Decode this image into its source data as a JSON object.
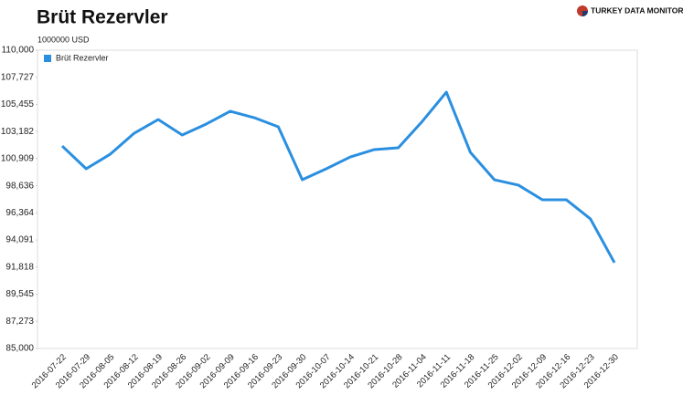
{
  "chart_data": {
    "type": "line",
    "title": "Brüt Rezervler",
    "subtitle": "1000000 USD",
    "brand": "TURKEY DATA MONITOR",
    "x": [
      "2016-07-22",
      "2016-07-29",
      "2016-08-05",
      "2016-08-12",
      "2016-08-19",
      "2016-08-26",
      "2016-09-02",
      "2016-09-09",
      "2016-09-16",
      "2016-09-23",
      "2016-09-30",
      "2016-10-07",
      "2016-10-14",
      "2016-10-21",
      "2016-10-28",
      "2016-11-04",
      "2016-11-11",
      "2016-11-18",
      "2016-11-25",
      "2016-12-02",
      "2016-12-09",
      "2016-12-16",
      "2016-12-23",
      "2016-12-30"
    ],
    "series": [
      {
        "name": "Brüt Rezervler",
        "color": "#2b8fe0",
        "values": [
          101970,
          100060,
          101280,
          103040,
          104190,
          102890,
          103810,
          104880,
          104340,
          103580,
          99140,
          100060,
          101050,
          101670,
          101820,
          104040,
          106480,
          101440,
          99140,
          98690,
          97460,
          97460,
          95860,
          92190
        ]
      }
    ],
    "ylim": [
      85000,
      110000
    ],
    "yticks": [
      {
        "value": 85000,
        "label": "85,000"
      },
      {
        "value": 87272.73,
        "label": "87,273"
      },
      {
        "value": 89545.45,
        "label": "89,545"
      },
      {
        "value": 91818.18,
        "label": "91,818"
      },
      {
        "value": 94090.91,
        "label": "94,091"
      },
      {
        "value": 96363.64,
        "label": "96,364"
      },
      {
        "value": 98636.36,
        "label": "98,636"
      },
      {
        "value": 100909.09,
        "label": "100,909"
      },
      {
        "value": 103181.82,
        "label": "103,182"
      },
      {
        "value": 105454.55,
        "label": "105,455"
      },
      {
        "value": 107727.27,
        "label": "107,727"
      },
      {
        "value": 110000,
        "label": "110,000"
      }
    ],
    "grid": false,
    "legend": "top-left"
  }
}
